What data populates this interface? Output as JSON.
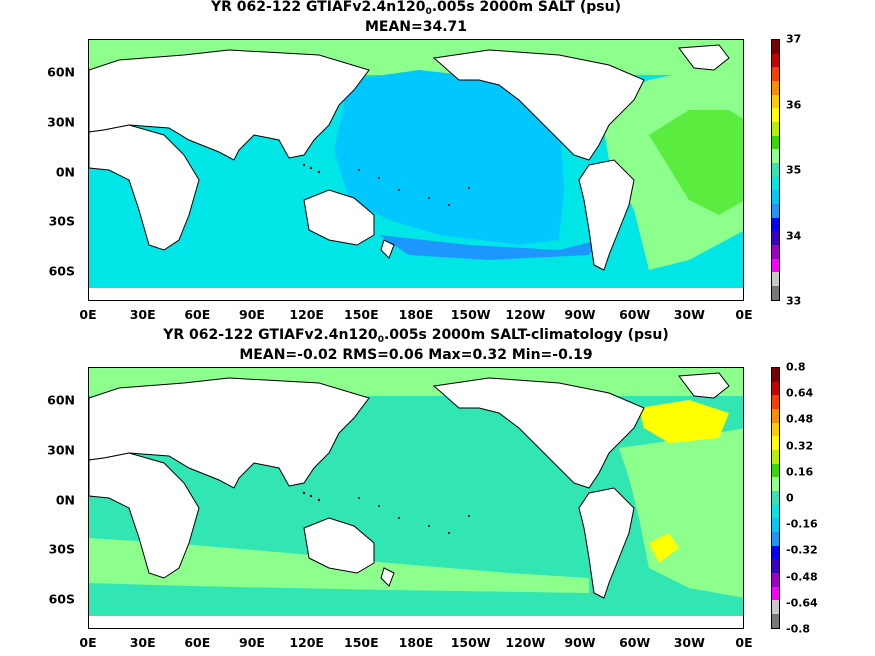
{
  "panels": [
    {
      "title_main": "YR 062-122 GTIAFv2.4n120",
      "title_sub": "0",
      "title_rest": ".005s 2000m SALT (psu)",
      "stats": "MEAN=34.71",
      "field": "salinity",
      "colorbar": {
        "ticks": [
          "37",
          "36",
          "35",
          "34",
          "33"
        ],
        "colors": [
          "#7a0000",
          "#c80000",
          "#ff3c00",
          "#ff8c00",
          "#ffcc00",
          "#ffff00",
          "#b4f000",
          "#32dc00",
          "#8cff8c",
          "#32e6b4",
          "#00e6e6",
          "#00c8ff",
          "#1e96ff",
          "#0000ff",
          "#3c00c8",
          "#a000c8",
          "#ff00ff",
          "#c8c8c8",
          "#787878"
        ]
      }
    },
    {
      "title_main": "YR 062-122 GTIAFv2.4n120",
      "title_sub": "0",
      "title_rest": ".005s 2000m SALT-climatology (psu)",
      "stats": "MEAN=-0.02   RMS=0.06   Max=0.32   Min=-0.19",
      "field": "salinity-anomaly",
      "colorbar": {
        "ticks": [
          "0.8",
          "0.64",
          "0.48",
          "0.32",
          "0.16",
          "0",
          "-0.16",
          "-0.32",
          "-0.48",
          "-0.64",
          "-0.8"
        ],
        "colors": [
          "#7a0000",
          "#c80000",
          "#ff3c00",
          "#ff8c00",
          "#ffcc00",
          "#ffff00",
          "#b4f000",
          "#32dc00",
          "#8cff8c",
          "#32e6b4",
          "#00e6e6",
          "#00c8ff",
          "#1e96ff",
          "#0000ff",
          "#3c00c8",
          "#a000c8",
          "#ff00ff",
          "#c8c8c8",
          "#787878"
        ]
      }
    }
  ],
  "x_ticks": [
    "0E",
    "30E",
    "60E",
    "90E",
    "120E",
    "150E",
    "180E",
    "150W",
    "120W",
    "90W",
    "60W",
    "30W",
    "0E"
  ],
  "y_ticks": [
    "60N",
    "30N",
    "0N",
    "30S",
    "60S"
  ],
  "colors": {
    "pacific_salinity": "#00c8ff",
    "indian_salinity": "#00e6e6",
    "atlantic_salinity": "#8cff8c",
    "anomaly_background": "#32e6b4",
    "anomaly_positive": "#8cff8c",
    "anomaly_high": "#ffff00",
    "land": "#ffffff",
    "coast": "#000000"
  }
}
